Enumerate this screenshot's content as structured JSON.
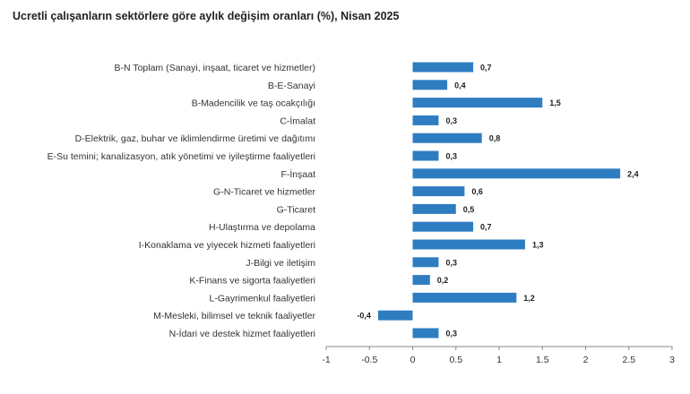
{
  "chart_data": {
    "type": "bar",
    "orientation": "horizontal",
    "title": "Ucretli çalışanların sektörlere göre aylık değişim oranları (%), Nisan 2025",
    "categories": [
      "B-N Toplam (Sanayi, inşaat, ticaret ve hizmetler)",
      "B-E-Sanayi",
      "B-Madencilik ve taş ocakçılığı",
      "C-İmalat",
      "D-Elektrik, gaz, buhar ve iklimlendirme üretimi ve dağıtımı",
      "E-Su temini; kanalizasyon, atık yönetimi ve iyileştirme faaliyetleri",
      "F-İnşaat",
      "G-N-Ticaret ve hizmetler",
      "G-Ticaret",
      "H-Ulaştırma ve depolama",
      "I-Konaklama ve yiyecek hizmeti faaliyetleri",
      "J-Bilgi ve iletişim",
      "K-Finans ve sigorta faaliyetleri",
      "L-Gayrimenkul faaliyetleri",
      "M-Mesleki, bilimsel ve teknik faaliyetler",
      "N-İdari ve destek hizmet faaliyetleri"
    ],
    "values": [
      0.7,
      0.4,
      1.5,
      0.3,
      0.8,
      0.3,
      2.4,
      0.6,
      0.5,
      0.7,
      1.3,
      0.3,
      0.2,
      1.2,
      -0.4,
      0.3
    ],
    "value_labels": [
      "0,7",
      "0,4",
      "1,5",
      "0,3",
      "0,8",
      "0,3",
      "2,4",
      "0,6",
      "0,5",
      "0,7",
      "1,3",
      "0,3",
      "0,2",
      "1,2",
      "-0,4",
      "0,3"
    ],
    "xlim": [
      -1,
      3
    ],
    "x_ticks": [
      -1,
      -0.5,
      0,
      0.5,
      1,
      1.5,
      2,
      2.5,
      3
    ],
    "x_tick_labels": [
      "-1",
      "-0.5",
      "0",
      "0.5",
      "1",
      "1.5",
      "2",
      "2.5",
      "3"
    ],
    "grid": false,
    "colors": {
      "bar": "#2f7dc1",
      "axis": "#888888"
    }
  }
}
